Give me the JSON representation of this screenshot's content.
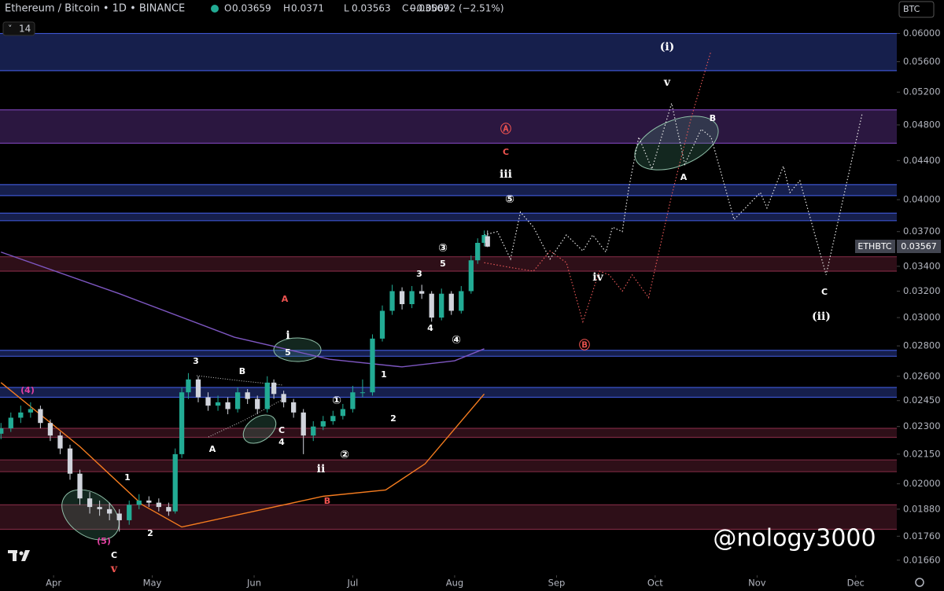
{
  "chart_data": {
    "type": "candlestick",
    "title": "Ethereum / Bitcoin • 1D • BINANCE",
    "ohlc_labels": [
      "O",
      "H",
      "L",
      "C"
    ],
    "change": "−0.00092 (−2.51%)",
    "indicator": "14",
    "currency": "BTC",
    "symbol": "ETHBTC",
    "watermark": "@nology3000",
    "log": true,
    "up_color": "#22ab94",
    "down_color": "#d1d4dc",
    "xlim": [
      -16.3,
      256.5
    ],
    "xticks": [
      {
        "value": 0,
        "label": "Apr"
      },
      {
        "value": 30,
        "label": "May"
      },
      {
        "value": 61,
        "label": "Jun"
      },
      {
        "value": 91,
        "label": "Jul"
      },
      {
        "value": 122,
        "label": "Aug"
      },
      {
        "value": 153,
        "label": "Sep"
      },
      {
        "value": 183,
        "label": "Oct"
      },
      {
        "value": 214,
        "label": "Nov"
      },
      {
        "value": 244,
        "label": "Dec"
      }
    ],
    "ylim": [
      0.016,
      0.0651
    ],
    "yticks": [
      {
        "value": 0.06,
        "label": "0.06000"
      },
      {
        "value": 0.056,
        "label": "0.05600"
      },
      {
        "value": 0.052,
        "label": "0.05200"
      },
      {
        "value": 0.048,
        "label": "0.04800"
      },
      {
        "value": 0.044,
        "label": "0.04400"
      },
      {
        "value": 0.04,
        "label": "0.04000"
      },
      {
        "value": 0.037,
        "label": "0.03700"
      },
      {
        "value": 0.034,
        "label": "0.03400"
      },
      {
        "value": 0.032,
        "label": "0.03200"
      },
      {
        "value": 0.03,
        "label": "0.03000"
      },
      {
        "value": 0.028,
        "label": "0.02800"
      },
      {
        "value": 0.026,
        "label": "0.02600"
      },
      {
        "value": 0.0245,
        "label": "0.02450"
      },
      {
        "value": 0.023,
        "label": "0.02300"
      },
      {
        "value": 0.0215,
        "label": "0.02150"
      },
      {
        "value": 0.02,
        "label": "0.02000"
      },
      {
        "value": 0.0188,
        "label": "0.01880"
      },
      {
        "value": 0.0176,
        "label": "0.01760"
      },
      {
        "value": 0.0166,
        "label": "0.01660"
      }
    ],
    "x": [
      -16,
      -13,
      -10,
      -7,
      -4,
      -1,
      2,
      5,
      8,
      11,
      14,
      17,
      20,
      23,
      26,
      29,
      32,
      35,
      37,
      39,
      41,
      44,
      47,
      50,
      53,
      56,
      59,
      62,
      65,
      67,
      70,
      73,
      76,
      79,
      82,
      85,
      88,
      91,
      94,
      97,
      100,
      103,
      106,
      109,
      112,
      115,
      118,
      121,
      124,
      127,
      129,
      131,
      132
    ],
    "open": [
      0.0226,
      0.0229,
      0.0235,
      0.0238,
      0.024,
      0.0232,
      0.0225,
      0.0218,
      0.0205,
      0.0193,
      0.0189,
      0.0188,
      0.0186,
      0.0183,
      0.019,
      0.0192,
      0.0191,
      0.0189,
      0.0187,
      0.0215,
      0.025,
      0.0258,
      0.0247,
      0.0242,
      0.0244,
      0.024,
      0.025,
      0.0246,
      0.024,
      0.0256,
      0.0249,
      0.0244,
      0.0238,
      0.0225,
      0.023,
      0.0233,
      0.0236,
      0.024,
      0.025,
      0.025,
      0.0285,
      0.0305,
      0.032,
      0.031,
      0.032,
      0.0318,
      0.03,
      0.0318,
      0.0305,
      0.032,
      0.0345,
      0.036,
      0.03659
    ],
    "high": [
      0.0232,
      0.0238,
      0.0242,
      0.0244,
      0.0242,
      0.0234,
      0.0227,
      0.022,
      0.0207,
      0.0196,
      0.0192,
      0.0191,
      0.0188,
      0.0192,
      0.0195,
      0.0194,
      0.0193,
      0.0191,
      0.0218,
      0.0253,
      0.0262,
      0.026,
      0.025,
      0.0248,
      0.0247,
      0.0253,
      0.0252,
      0.0248,
      0.026,
      0.0258,
      0.0251,
      0.0246,
      0.024,
      0.0233,
      0.0236,
      0.0239,
      0.0243,
      0.0254,
      0.0258,
      0.0288,
      0.0309,
      0.0325,
      0.0323,
      0.0324,
      0.0325,
      0.032,
      0.0322,
      0.032,
      0.0324,
      0.0349,
      0.0364,
      0.0371,
      0.0371
    ],
    "low": [
      0.0223,
      0.0227,
      0.0232,
      0.0235,
      0.0229,
      0.0222,
      0.0215,
      0.0202,
      0.019,
      0.0186,
      0.0185,
      0.0183,
      0.0178,
      0.0181,
      0.0188,
      0.0189,
      0.0187,
      0.0185,
      0.0186,
      0.0213,
      0.0246,
      0.0244,
      0.0239,
      0.0239,
      0.0237,
      0.0238,
      0.0243,
      0.0237,
      0.0238,
      0.0246,
      0.0241,
      0.0235,
      0.0215,
      0.0222,
      0.0228,
      0.0231,
      0.0234,
      0.0238,
      0.0247,
      0.0248,
      0.0283,
      0.0302,
      0.0306,
      0.0307,
      0.0314,
      0.0297,
      0.0298,
      0.0302,
      0.0303,
      0.0318,
      0.0342,
      0.0357,
      0.03563
    ],
    "close": [
      0.0229,
      0.0235,
      0.0238,
      0.024,
      0.0232,
      0.0225,
      0.0218,
      0.0205,
      0.0193,
      0.0189,
      0.0188,
      0.0186,
      0.0183,
      0.019,
      0.0192,
      0.0191,
      0.0189,
      0.0187,
      0.0215,
      0.025,
      0.0258,
      0.0247,
      0.0242,
      0.0244,
      0.024,
      0.025,
      0.0246,
      0.024,
      0.0256,
      0.0249,
      0.0244,
      0.0238,
      0.0225,
      0.023,
      0.0233,
      0.0236,
      0.024,
      0.025,
      0.025,
      0.0285,
      0.0305,
      0.032,
      0.031,
      0.032,
      0.0318,
      0.03,
      0.0318,
      0.0305,
      0.032,
      0.0345,
      0.036,
      0.0367,
      0.03567
    ],
    "series": [
      {
        "color": "#f57c1f",
        "dashed": false,
        "x": [
          -16,
          8,
          27,
          39,
          82,
          101,
          113,
          131
        ],
        "values": [
          0.0256,
          0.0219,
          0.019,
          0.018,
          0.0194,
          0.0197,
          0.021,
          0.0249
        ]
      },
      {
        "color": "#7e57c2",
        "dashed": false,
        "x": [
          -16,
          20,
          55,
          84,
          106,
          122,
          131
        ],
        "values": [
          0.0352,
          0.0318,
          0.0286,
          0.0271,
          0.0266,
          0.027,
          0.0278
        ]
      },
      {
        "color": "#e6e6e6",
        "dashed": true,
        "x": [
          131,
          135,
          139,
          142,
          146,
          151,
          156,
          161,
          164,
          168,
          170,
          173,
          175,
          178,
          182,
          188,
          192,
          197,
          200,
          207,
          215,
          217,
          222,
          224,
          227,
          235,
          246
        ],
        "values": [
          0.0367,
          0.037,
          0.0346,
          0.0388,
          0.0374,
          0.0346,
          0.0367,
          0.0353,
          0.0367,
          0.0352,
          0.0374,
          0.037,
          0.0412,
          0.0466,
          0.0431,
          0.0506,
          0.0436,
          0.0475,
          0.0466,
          0.0381,
          0.0407,
          0.0392,
          0.0434,
          0.0407,
          0.0419,
          0.0333,
          0.0494
        ]
      },
      {
        "color": "#e05555",
        "dashed": true,
        "x": [
          131,
          139,
          146,
          151,
          156,
          161,
          166,
          169,
          173,
          176,
          181,
          188,
          194,
          200
        ],
        "values": [
          0.0343,
          0.0339,
          0.0336,
          0.0353,
          0.0343,
          0.0297,
          0.0336,
          0.0333,
          0.032,
          0.0333,
          0.0315,
          0.0404,
          0.0489,
          0.0575
        ]
      }
    ],
    "bands": [
      {
        "range": [
          0.0548,
          0.06
        ],
        "color": "#1e2a66"
      },
      {
        "range": [
          0.0459,
          0.0498
        ],
        "color": "#3a1f55"
      },
      {
        "range": [
          0.0404,
          0.0415
        ],
        "color": "#1e2a66"
      },
      {
        "range": [
          0.038,
          0.0387
        ],
        "color": "#1e2a66"
      },
      {
        "range": [
          0.0336,
          0.0348
        ],
        "color": "#3d1420"
      },
      {
        "range": [
          0.0273,
          0.0277
        ],
        "color": "#1e2a66"
      },
      {
        "range": [
          0.0247,
          0.0253
        ],
        "color": "#1e2a66"
      },
      {
        "range": [
          0.0224,
          0.0229
        ],
        "color": "#3d1420"
      },
      {
        "range": [
          0.0206,
          0.0212
        ],
        "color": "#3d1420"
      },
      {
        "range": [
          0.0179,
          0.019
        ],
        "color": "#3d1420"
      }
    ],
    "annotations": [
      {
        "text": "(i)",
        "color": "#ffffff"
      },
      {
        "text": "v",
        "color": "#ffffff"
      },
      {
        "text": "Ⓐ",
        "color": "#ef5350"
      },
      {
        "text": "C",
        "color": "#ef5350"
      },
      {
        "text": "iii",
        "color": "#ffffff"
      },
      {
        "text": "⑤",
        "color": "#ffffff"
      },
      {
        "text": "B",
        "color": "#ffffff"
      },
      {
        "text": "A",
        "color": "#ffffff"
      },
      {
        "text": "iv",
        "color": "#ffffff"
      },
      {
        "text": "C",
        "color": "#ffffff"
      },
      {
        "text": "(ii)",
        "color": "#ffffff"
      },
      {
        "text": "Ⓑ",
        "color": "#ef5350"
      },
      {
        "text": "A",
        "color": "#ef5350"
      },
      {
        "text": "3",
        "color": "#ffffff"
      },
      {
        "text": "5",
        "color": "#ffffff"
      },
      {
        "text": "③",
        "color": "#ffffff"
      },
      {
        "text": "4",
        "color": "#ffffff"
      },
      {
        "text": "④",
        "color": "#ffffff"
      },
      {
        "text": "i",
        "color": "#ffffff"
      },
      {
        "text": "5",
        "color": "#ffffff"
      },
      {
        "text": "3",
        "color": "#ffffff"
      },
      {
        "text": "B",
        "color": "#ffffff"
      },
      {
        "text": "1",
        "color": "#ffffff"
      },
      {
        "text": "①",
        "color": "#ffffff"
      },
      {
        "text": "2",
        "color": "#ffffff"
      },
      {
        "text": "C",
        "color": "#ffffff"
      },
      {
        "text": "4",
        "color": "#ffffff"
      },
      {
        "text": "A",
        "color": "#ffffff"
      },
      {
        "text": "②",
        "color": "#ffffff"
      },
      {
        "text": "ii",
        "color": "#ffffff"
      },
      {
        "text": "1",
        "color": "#ffffff"
      },
      {
        "text": "2",
        "color": "#ffffff"
      },
      {
        "text": "B",
        "color": "#ef5350"
      },
      {
        "text": "(4)",
        "color": "#e040a0"
      },
      {
        "text": "(5)",
        "color": "#e040a0"
      },
      {
        "text": "C",
        "color": "#ffffff"
      },
      {
        "text": "v",
        "color": "#ef5350"
      }
    ]
  }
}
